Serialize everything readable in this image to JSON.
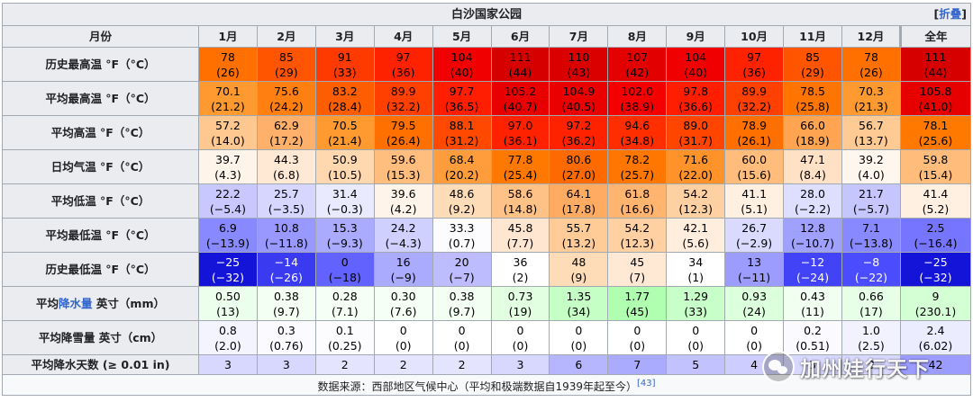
{
  "title": "白沙国家公园",
  "collapse_label": "折叠",
  "collapse_brackets": [
    "[",
    "]"
  ],
  "header": {
    "corner": "月份",
    "months": [
      "1月",
      "2月",
      "3月",
      "4月",
      "5月",
      "6月",
      "7月",
      "8月",
      "9月",
      "10月",
      "11月",
      "12月"
    ],
    "annual": "全年"
  },
  "rows": [
    {
      "label": "历史最高温 °F（°C）",
      "size": "tall",
      "cells": [
        {
          "f": "78",
          "c": "(26)",
          "bg": "#ff7000"
        },
        {
          "f": "85",
          "c": "(29)",
          "bg": "#ff5500"
        },
        {
          "f": "91",
          "c": "(33)",
          "bg": "#ff3a00"
        },
        {
          "f": "97",
          "c": "(36)",
          "bg": "#ff2200"
        },
        {
          "f": "104",
          "c": "(40)",
          "bg": "#f00000"
        },
        {
          "f": "111",
          "c": "(44)",
          "bg": "#d60000"
        },
        {
          "f": "110",
          "c": "(43)",
          "bg": "#da0000"
        },
        {
          "f": "107",
          "c": "(42)",
          "bg": "#e20000"
        },
        {
          "f": "104",
          "c": "(40)",
          "bg": "#f00000"
        },
        {
          "f": "97",
          "c": "(36)",
          "bg": "#ff2200"
        },
        {
          "f": "85",
          "c": "(29)",
          "bg": "#ff5500"
        },
        {
          "f": "78",
          "c": "(26)",
          "bg": "#ff7000"
        }
      ],
      "annual": {
        "f": "111",
        "c": "(44)",
        "bg": "#d60000"
      }
    },
    {
      "label": "平均最高温 °F（°C）",
      "size": "tall",
      "cells": [
        {
          "f": "70.1",
          "c": "(21.2)",
          "bg": "#ff9a30"
        },
        {
          "f": "75.6",
          "c": "(24.2)",
          "bg": "#ff8010"
        },
        {
          "f": "83.2",
          "c": "(28.4)",
          "bg": "#ff5e00"
        },
        {
          "f": "89.9",
          "c": "(32.2)",
          "bg": "#ff4000"
        },
        {
          "f": "97.7",
          "c": "(36.5)",
          "bg": "#ff1e00"
        },
        {
          "f": "105.2",
          "c": "(40.7)",
          "bg": "#e80000"
        },
        {
          "f": "104.9",
          "c": "(40.5)",
          "bg": "#ea0000"
        },
        {
          "f": "102.0",
          "c": "(38.9)",
          "bg": "#f50000"
        },
        {
          "f": "97.8",
          "c": "(36.6)",
          "bg": "#ff1e00"
        },
        {
          "f": "89.9",
          "c": "(32.2)",
          "bg": "#ff4000"
        },
        {
          "f": "78.5",
          "c": "(25.8)",
          "bg": "#ff7500"
        },
        {
          "f": "70.3",
          "c": "(21.3)",
          "bg": "#ff9a30"
        }
      ],
      "annual": {
        "f": "105.8",
        "c": "(41.0)",
        "bg": "#e60000"
      }
    },
    {
      "label": "平均高温 °F（°C）",
      "size": "tall",
      "cells": [
        {
          "f": "57.2",
          "c": "(14.0)",
          "bg": "#ffc890"
        },
        {
          "f": "62.9",
          "c": "(17.2)",
          "bg": "#ffb06a"
        },
        {
          "f": "70.5",
          "c": "(21.4)",
          "bg": "#ff9a30"
        },
        {
          "f": "79.5",
          "c": "(26.4)",
          "bg": "#ff7000"
        },
        {
          "f": "88.1",
          "c": "(31.2)",
          "bg": "#ff4800"
        },
        {
          "f": "97.0",
          "c": "(36.1)",
          "bg": "#ff2200"
        },
        {
          "f": "97.2",
          "c": "(36.2)",
          "bg": "#ff2200"
        },
        {
          "f": "94.6",
          "c": "(34.8)",
          "bg": "#ff2e00"
        },
        {
          "f": "89.0",
          "c": "(31.7)",
          "bg": "#ff4500"
        },
        {
          "f": "78.9",
          "c": "(26.1)",
          "bg": "#ff7000"
        },
        {
          "f": "66.0",
          "c": "(18.9)",
          "bg": "#ffa450"
        },
        {
          "f": "56.7",
          "c": "(13.7)",
          "bg": "#ffca94"
        }
      ],
      "annual": {
        "f": "78.1",
        "c": "(25.6)",
        "bg": "#ff7800"
      }
    },
    {
      "label": "日均气温 °F（°C）",
      "size": "tall",
      "cells": [
        {
          "f": "39.7",
          "c": "(4.3)",
          "bg": "#fff4ea"
        },
        {
          "f": "44.3",
          "c": "(6.8)",
          "bg": "#ffe8d4"
        },
        {
          "f": "50.9",
          "c": "(10.5)",
          "bg": "#ffd8b0"
        },
        {
          "f": "59.6",
          "c": "(15.3)",
          "bg": "#ffbe7e"
        },
        {
          "f": "68.4",
          "c": "(20.2)",
          "bg": "#ff9c3c"
        },
        {
          "f": "77.8",
          "c": "(25.4)",
          "bg": "#ff7800"
        },
        {
          "f": "80.6",
          "c": "(27.0)",
          "bg": "#ff6a00"
        },
        {
          "f": "78.2",
          "c": "(25.7)",
          "bg": "#ff7600"
        },
        {
          "f": "71.6",
          "c": "(22.0)",
          "bg": "#ff9228"
        },
        {
          "f": "60.0",
          "c": "(15.6)",
          "bg": "#ffbc7a"
        },
        {
          "f": "47.1",
          "c": "(8.4)",
          "bg": "#ffe2c6"
        },
        {
          "f": "39.2",
          "c": "(4.0)",
          "bg": "#fff6ee"
        }
      ],
      "annual": {
        "f": "59.8",
        "c": "(15.4)",
        "bg": "#ffbc7a"
      }
    },
    {
      "label": "平均低温 °F（°C）",
      "size": "tall",
      "cells": [
        {
          "f": "22.2",
          "c": "(−5.4)",
          "bg": "#c8c8ff"
        },
        {
          "f": "25.7",
          "c": "(−3.5)",
          "bg": "#d6d6ff"
        },
        {
          "f": "31.4",
          "c": "(−0.3)",
          "bg": "#eaeaff"
        },
        {
          "f": "39.6",
          "c": "(4.2)",
          "bg": "#fff4ea"
        },
        {
          "f": "48.6",
          "c": "(9.2)",
          "bg": "#ffdcb8"
        },
        {
          "f": "58.6",
          "c": "(14.8)",
          "bg": "#ffc286"
        },
        {
          "f": "64.1",
          "c": "(17.8)",
          "bg": "#ffac62"
        },
        {
          "f": "61.8",
          "c": "(16.6)",
          "bg": "#ffb470"
        },
        {
          "f": "54.2",
          "c": "(12.3)",
          "bg": "#ffd0a2"
        },
        {
          "f": "41.1",
          "c": "(5.1)",
          "bg": "#fff0e2"
        },
        {
          "f": "28.0",
          "c": "(−2.2)",
          "bg": "#dedeff"
        },
        {
          "f": "21.7",
          "c": "(−5.7)",
          "bg": "#c6c6ff"
        }
      ],
      "annual": {
        "f": "41.4",
        "c": "(5.2)",
        "bg": "#fff0e2"
      }
    },
    {
      "label": "平均最低温 °F（°C）",
      "size": "tall",
      "cells": [
        {
          "f": "6.9",
          "c": "(−13.9)",
          "bg": "#8888ff"
        },
        {
          "f": "10.8",
          "c": "(−11.8)",
          "bg": "#9898ff"
        },
        {
          "f": "15.3",
          "c": "(−9.3)",
          "bg": "#aaaaff"
        },
        {
          "f": "24.2",
          "c": "(−4.3)",
          "bg": "#d0d0ff"
        },
        {
          "f": "33.3",
          "c": "(0.7)",
          "bg": "#fcfcff"
        },
        {
          "f": "45.8",
          "c": "(7.7)",
          "bg": "#ffe6d0"
        },
        {
          "f": "55.7",
          "c": "(13.2)",
          "bg": "#ffcc98"
        },
        {
          "f": "54.2",
          "c": "(12.3)",
          "bg": "#ffd0a2"
        },
        {
          "f": "42.1",
          "c": "(5.6)",
          "bg": "#ffeede"
        },
        {
          "f": "26.7",
          "c": "(−2.9)",
          "bg": "#dadaff"
        },
        {
          "f": "12.8",
          "c": "(−10.7)",
          "bg": "#a0a0ff"
        },
        {
          "f": "7.1",
          "c": "(−13.8)",
          "bg": "#8888ff"
        }
      ],
      "annual": {
        "f": "2.5",
        "c": "(−16.4)",
        "bg": "#7575ff"
      }
    },
    {
      "label": "历史最低温 °F（°C）",
      "size": "tall",
      "cells": [
        {
          "f": "−25",
          "c": "(−32)",
          "bg": "#1414d8",
          "light": true
        },
        {
          "f": "−14",
          "c": "(−26)",
          "bg": "#3a3af0",
          "light": true
        },
        {
          "f": "0",
          "c": "(−18)",
          "bg": "#6262ff"
        },
        {
          "f": "16",
          "c": "(−9)",
          "bg": "#aaaaff"
        },
        {
          "f": "20",
          "c": "(−7)",
          "bg": "#bcbcff"
        },
        {
          "f": "36",
          "c": "(2)",
          "bg": "#ffffff"
        },
        {
          "f": "48",
          "c": "(9)",
          "bg": "#ffdcb8"
        },
        {
          "f": "45",
          "c": "(7)",
          "bg": "#ffe8d4"
        },
        {
          "f": "34",
          "c": "(1)",
          "bg": "#ffffff"
        },
        {
          "f": "13",
          "c": "(−11)",
          "bg": "#9c9cff"
        },
        {
          "f": "−12",
          "c": "(−24)",
          "bg": "#4242f6",
          "light": true
        },
        {
          "f": "−8",
          "c": "(−22)",
          "bg": "#4c4cff",
          "light": true
        }
      ],
      "annual": {
        "f": "−25",
        "c": "(−32)",
        "bg": "#1414d8",
        "light": true
      }
    },
    {
      "label": "平均降水量 英寸（mm）",
      "label_link": "降水量",
      "label_pre": "平均",
      "label_post": " 英寸（mm）",
      "size": "tall",
      "cells": [
        {
          "f": "0.50",
          "c": "(13)",
          "bg": "#ecffec"
        },
        {
          "f": "0.38",
          "c": "(9.7)",
          "bg": "#f2fff2"
        },
        {
          "f": "0.28",
          "c": "(7.1)",
          "bg": "#f6fff6"
        },
        {
          "f": "0.30",
          "c": "(7.6)",
          "bg": "#f6fff6"
        },
        {
          "f": "0.38",
          "c": "(9.7)",
          "bg": "#f2fff2"
        },
        {
          "f": "0.73",
          "c": "(19)",
          "bg": "#e2ffe2"
        },
        {
          "f": "1.35",
          "c": "(34)",
          "bg": "#c6ffc6"
        },
        {
          "f": "1.77",
          "c": "(45)",
          "bg": "#b0ffb0"
        },
        {
          "f": "1.29",
          "c": "(33)",
          "bg": "#c8ffc8"
        },
        {
          "f": "0.93",
          "c": "(24)",
          "bg": "#dcffdc"
        },
        {
          "f": "0.43",
          "c": "(11)",
          "bg": "#f0fff0"
        },
        {
          "f": "0.66",
          "c": "(17)",
          "bg": "#e6ffe6"
        }
      ],
      "annual": {
        "f": "9",
        "c": "(230.1)",
        "bg": "#d4ffd4"
      }
    },
    {
      "label": "平均降雪量 英寸（cm）",
      "size": "tall",
      "cells": [
        {
          "f": "0.8",
          "c": "(2.0)",
          "bg": "#f4f4ff"
        },
        {
          "f": "0.3",
          "c": "(0.76)",
          "bg": "#fafaff"
        },
        {
          "f": "0.1",
          "c": "(0.25)",
          "bg": "#fcfcff"
        },
        {
          "f": "0",
          "c": "(0)",
          "bg": "#ffffff"
        },
        {
          "f": "0",
          "c": "(0)",
          "bg": "#ffffff"
        },
        {
          "f": "0",
          "c": "(0)",
          "bg": "#ffffff"
        },
        {
          "f": "0",
          "c": "(0)",
          "bg": "#ffffff"
        },
        {
          "f": "0",
          "c": "(0)",
          "bg": "#ffffff"
        },
        {
          "f": "0",
          "c": "(0)",
          "bg": "#ffffff"
        },
        {
          "f": "0",
          "c": "(0)",
          "bg": "#ffffff"
        },
        {
          "f": "0.2",
          "c": "(0.51)",
          "bg": "#fbfbff"
        },
        {
          "f": "1.0",
          "c": "(2.5)",
          "bg": "#f2f2ff"
        }
      ],
      "annual": {
        "f": "2.4",
        "c": "(6.02)",
        "bg": "#ececff"
      }
    },
    {
      "label": "平均降水天数 (≥ 0.01 in)",
      "size": "short",
      "cells": [
        {
          "f": "3",
          "bg": "#d8d8ff"
        },
        {
          "f": "3",
          "bg": "#d8d8ff"
        },
        {
          "f": "2",
          "bg": "#e4e4ff"
        },
        {
          "f": "2",
          "bg": "#e4e4ff"
        },
        {
          "f": "2",
          "bg": "#e4e4ff"
        },
        {
          "f": "3",
          "bg": "#d8d8ff"
        },
        {
          "f": "6",
          "bg": "#b6b6ff"
        },
        {
          "f": "7",
          "bg": "#aaaaff"
        },
        {
          "f": "5",
          "bg": "#c2c2ff"
        },
        {
          "f": "4",
          "bg": "#cdcdff"
        },
        {
          "f": "3",
          "bg": "#d8d8ff"
        },
        {
          "f": "3",
          "bg": "#d8d8ff"
        }
      ],
      "annual": {
        "f": "42",
        "bg": "#9c9cff"
      }
    }
  ],
  "source": {
    "text": "数据来源：西部地区气候中心（平均和极端数据自1939年起至今）",
    "ref": "[43]"
  },
  "watermark": "加州娃行天下"
}
